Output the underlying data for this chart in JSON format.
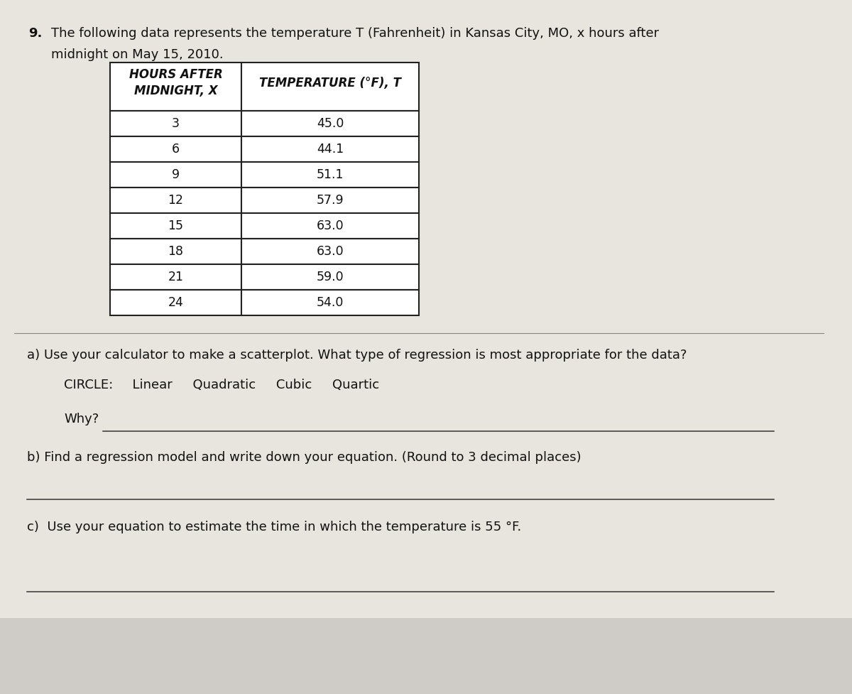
{
  "title_number": "9.",
  "title_line1": "The following data represents the temperature T (Fahrenheit) in Kansas City, MO, x hours after",
  "title_line2": "midnight on May 15, 2010.",
  "table_header_col1": "HOURS AFTER\nMIDNIGHT, X",
  "table_header_col2": "TEMPERATURE (°F), T",
  "table_data": [
    [
      3,
      45.0
    ],
    [
      6,
      44.1
    ],
    [
      9,
      51.1
    ],
    [
      12,
      57.9
    ],
    [
      15,
      63.0
    ],
    [
      18,
      63.0
    ],
    [
      21,
      59.0
    ],
    [
      24,
      54.0
    ]
  ],
  "part_a_text": "a) Use your calculator to make a scatterplot. What type of regression is most appropriate for the data?",
  "circle_label": "CIRCLE:",
  "circle_options": "  Linear     Quadratic     Cubic     Quartic",
  "why_label": "Why?",
  "part_b_text": "b) Find a regression model and write down your equation. (Round to 3 decimal places)",
  "part_c_text": "c)  Use your equation to estimate the time in which the temperature is 55 °F.",
  "bg_color": "#ccc9c3",
  "paper_color": "#e8e5df",
  "text_color": "#111111",
  "font_size": 13.0
}
